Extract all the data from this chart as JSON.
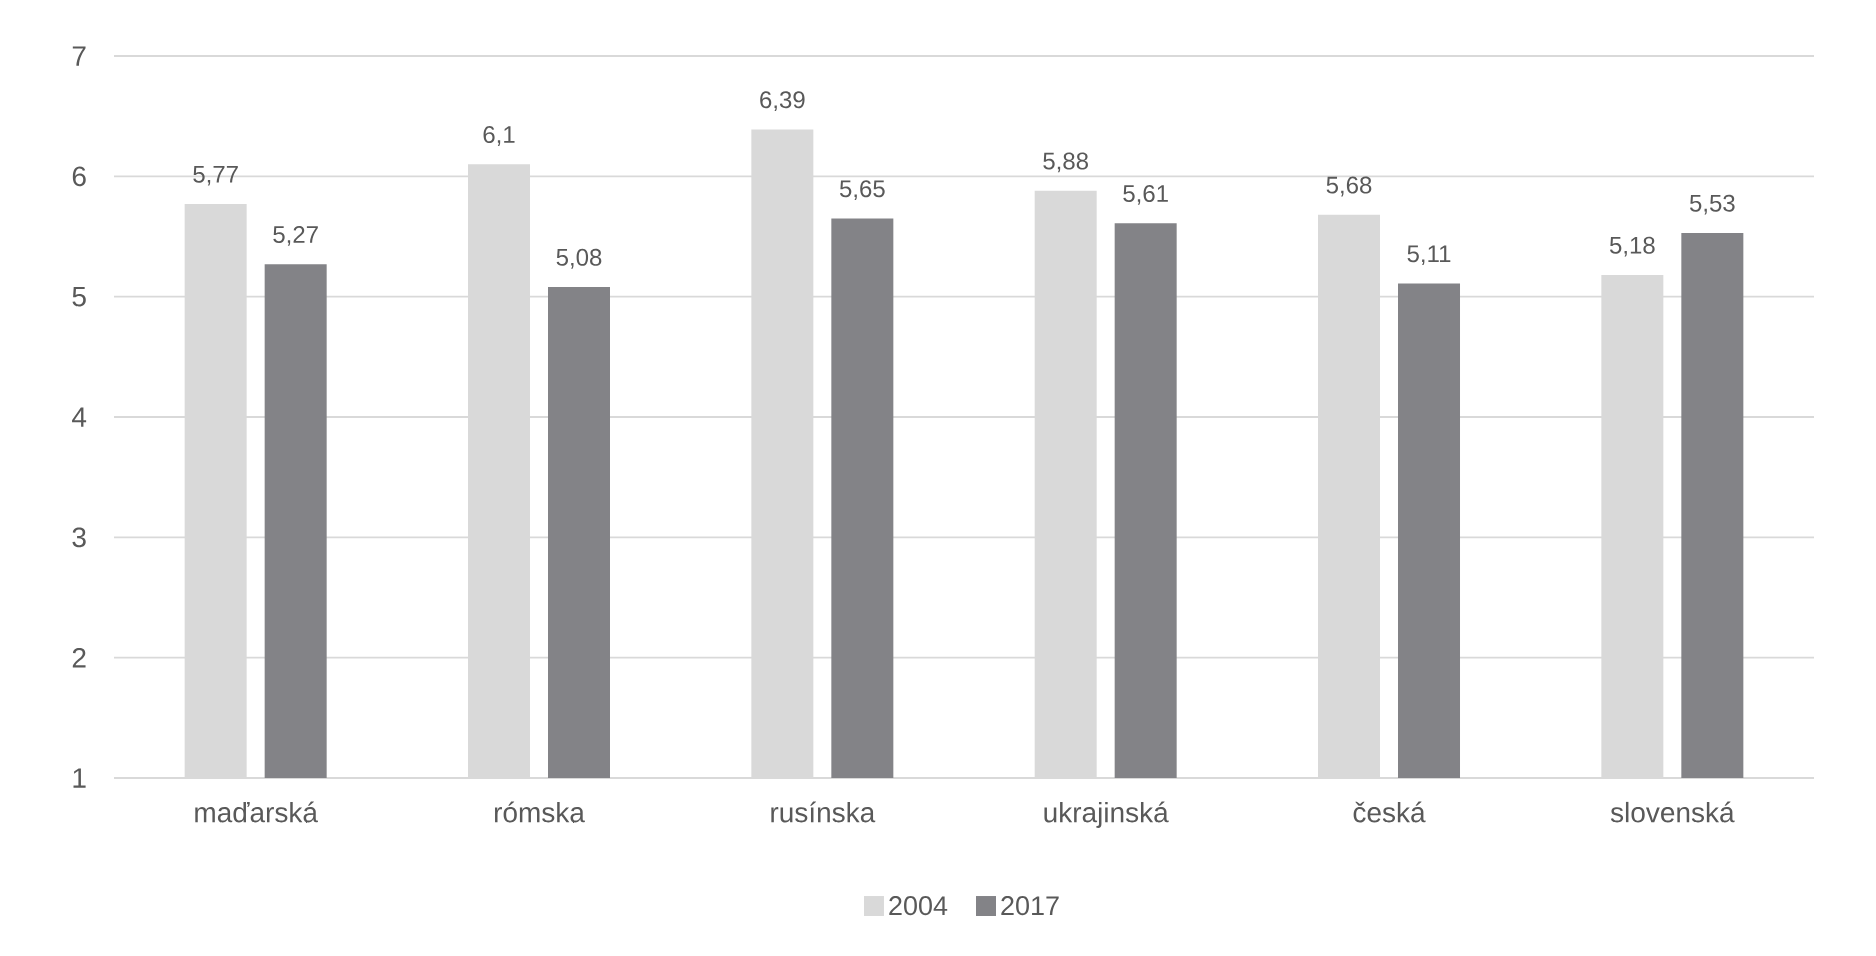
{
  "chart_data": {
    "type": "bar",
    "categories": [
      "maďarská",
      "rómska",
      "rusínska",
      "ukrajinská",
      "česká",
      "slovenská"
    ],
    "series": [
      {
        "name": "2004",
        "color": "#d9d9d9",
        "values": [
          5.77,
          6.1,
          6.39,
          5.88,
          5.68,
          5.18
        ],
        "value_labels": [
          "5,77",
          "6,1",
          "6,39",
          "5,88",
          "5,68",
          "5,18"
        ]
      },
      {
        "name": "2017",
        "color": "#838387",
        "values": [
          5.27,
          5.08,
          5.65,
          5.61,
          5.11,
          5.53
        ],
        "value_labels": [
          "5,27",
          "5,08",
          "5,65",
          "5,61",
          "5,11",
          "5,53"
        ]
      }
    ],
    "ylim": [
      1,
      7
    ],
    "yticks": [
      1,
      2,
      3,
      4,
      5,
      6,
      7
    ],
    "grid": "y",
    "legend": "bottom"
  }
}
